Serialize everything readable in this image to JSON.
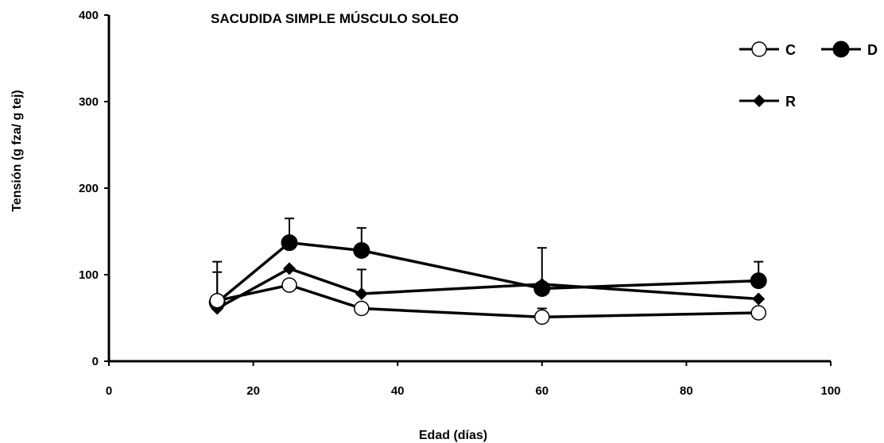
{
  "chart_data": {
    "type": "line",
    "title": "SACUDIDA SIMPLE MÚSCULO SOLEO",
    "xlabel": "Edad (días)",
    "ylabel": "Tensión (g fza/ g tej)",
    "xlim": [
      0,
      100
    ],
    "ylim": [
      0,
      400
    ],
    "xticks": [
      0,
      20,
      40,
      60,
      80,
      100
    ],
    "yticks": [
      0,
      100,
      200,
      300,
      400
    ],
    "grid": false,
    "legend_position": "top-right",
    "x": [
      15,
      25,
      35,
      60,
      90
    ],
    "series": [
      {
        "name": "C",
        "marker": "open-circle",
        "values": [
          70,
          88,
          61,
          51,
          56
        ],
        "error_plus": [
          33,
          0,
          0,
          10,
          0
        ]
      },
      {
        "name": "D",
        "marker": "filled-circle",
        "values": [
          68,
          137,
          128,
          84,
          93
        ],
        "error_plus": [
          47,
          28,
          26,
          47,
          22
        ]
      },
      {
        "name": "R",
        "marker": "filled-diamond",
        "values": [
          61,
          107,
          78,
          89,
          72
        ],
        "error_plus": [
          0,
          0,
          28,
          0,
          0
        ]
      }
    ]
  }
}
